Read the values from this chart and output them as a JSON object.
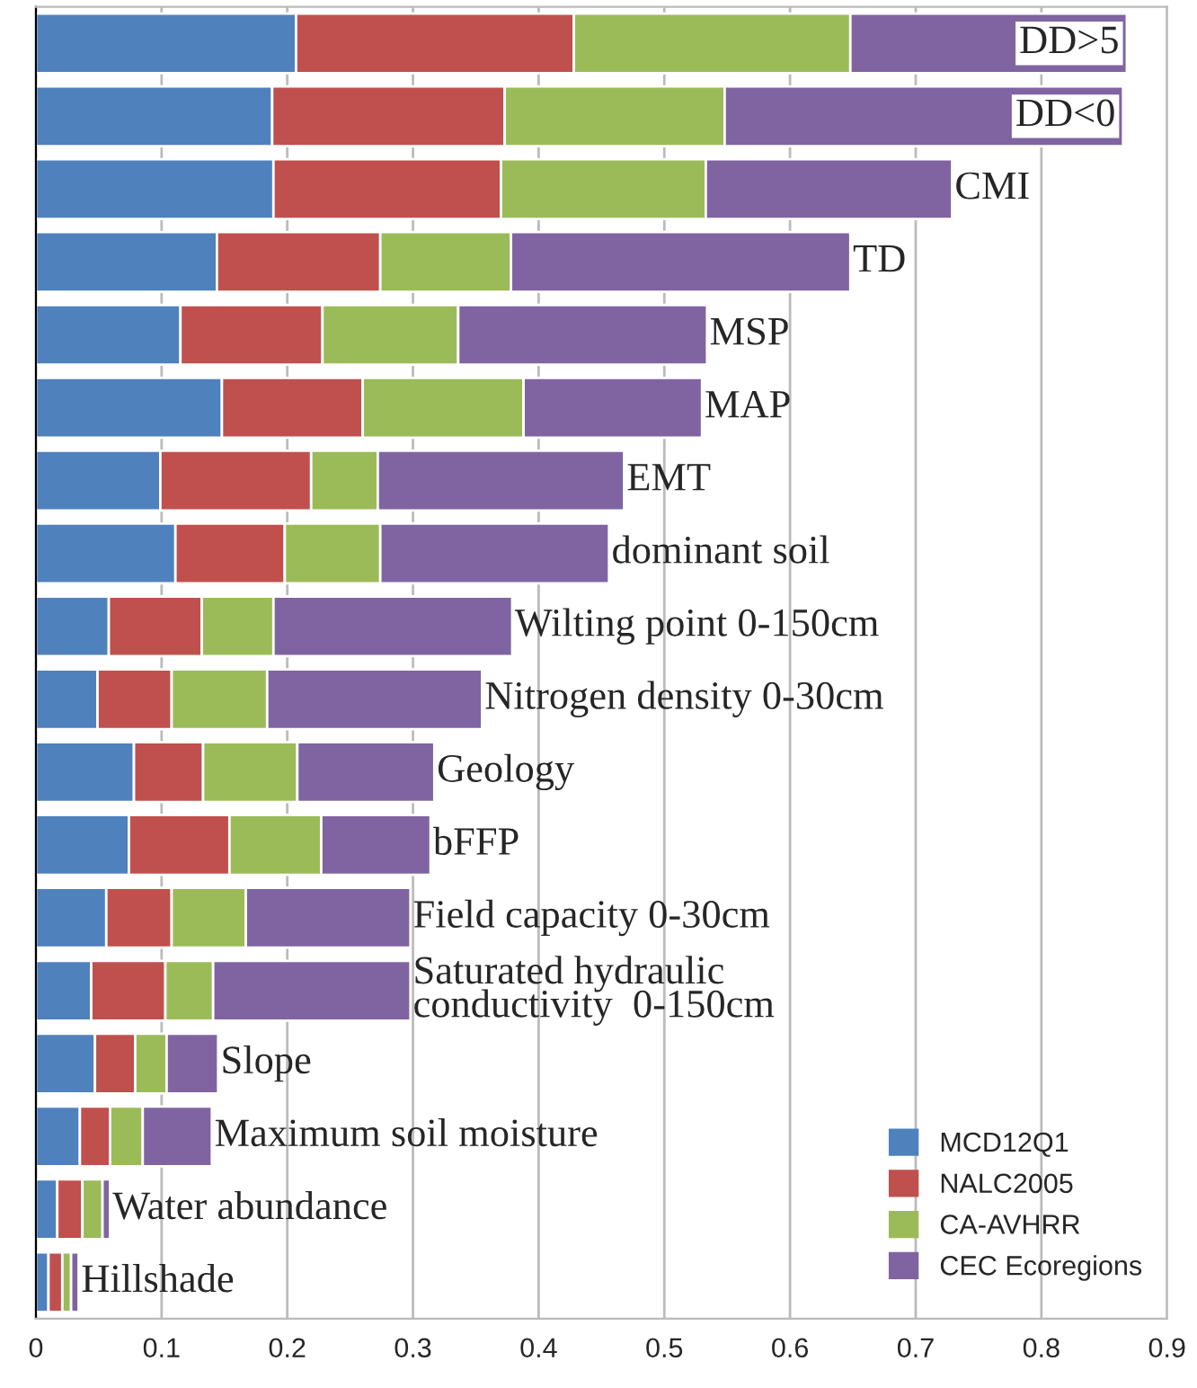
{
  "chart_data": {
    "type": "bar",
    "orientation": "horizontal",
    "stacked": true,
    "categories": [
      "DD>5",
      "DD<0",
      "CMI",
      "TD",
      "MSP",
      "MAP",
      "EMT",
      "dominant soil",
      "Wilting point 0-150cm",
      "Nitrogen density 0-30cm",
      "Geology",
      "bFFP",
      "Field capacity 0-30cm",
      "Saturated hydraulic\nconductivity  0-150cm",
      "Slope",
      "Maximum soil moisture",
      "Water abundance",
      "Hillshade"
    ],
    "series": [
      {
        "name": "MCD12Q1",
        "color": "#4f81bd",
        "values": [
          0.207,
          0.188,
          0.189,
          0.144,
          0.115,
          0.148,
          0.099,
          0.111,
          0.058,
          0.049,
          0.078,
          0.074,
          0.056,
          0.044,
          0.047,
          0.035,
          0.017,
          0.01
        ]
      },
      {
        "name": "NALC2005",
        "color": "#c0504d",
        "values": [
          0.221,
          0.185,
          0.181,
          0.13,
          0.113,
          0.112,
          0.12,
          0.087,
          0.074,
          0.059,
          0.055,
          0.08,
          0.052,
          0.059,
          0.032,
          0.024,
          0.02,
          0.011
        ]
      },
      {
        "name": "CA-AVHRR",
        "color": "#9bbb59",
        "values": [
          0.22,
          0.175,
          0.163,
          0.104,
          0.108,
          0.128,
          0.053,
          0.076,
          0.057,
          0.076,
          0.075,
          0.073,
          0.059,
          0.038,
          0.025,
          0.026,
          0.016,
          0.007
        ]
      },
      {
        "name": "CEC Ecoregions",
        "color": "#8064a2",
        "values": [
          0.22,
          0.317,
          0.196,
          0.27,
          0.198,
          0.142,
          0.196,
          0.182,
          0.19,
          0.171,
          0.109,
          0.087,
          0.131,
          0.157,
          0.041,
          0.055,
          0.006,
          0.006
        ]
      }
    ],
    "xlim": [
      0,
      0.9
    ],
    "xticks": [
      0,
      0.1,
      0.2,
      0.3,
      0.4,
      0.5,
      0.6,
      0.7,
      0.8,
      0.9
    ],
    "grid": "x",
    "legend": "bottom right",
    "tick_labels": "x"
  }
}
